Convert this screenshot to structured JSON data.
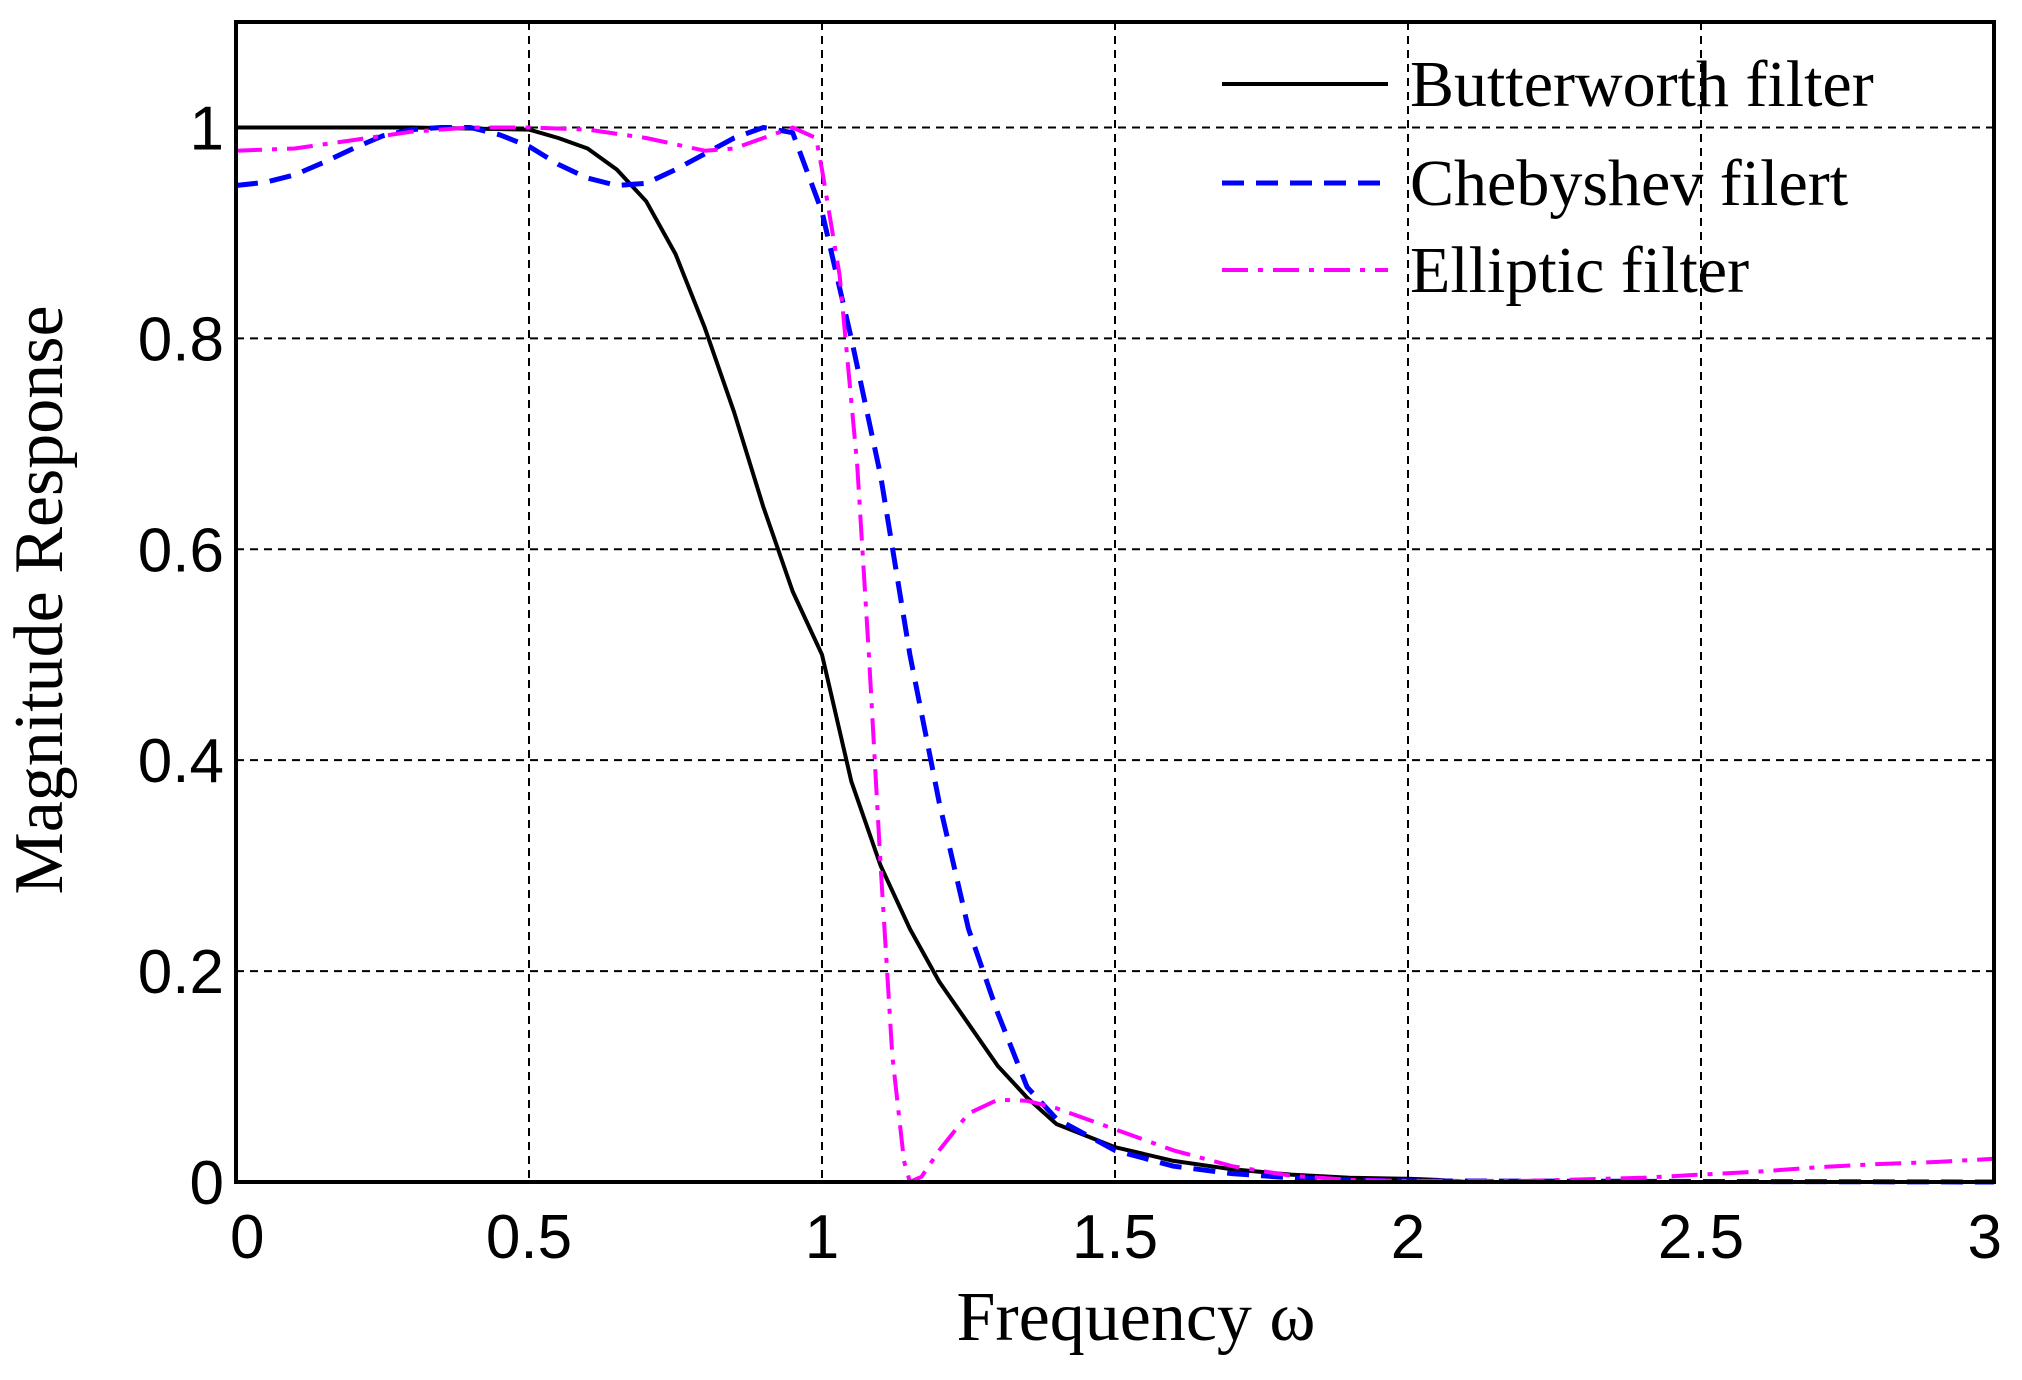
{
  "chart_data": {
    "type": "line",
    "title": "",
    "xlabel": "Frequency ω",
    "ylabel": "Magnitude Response",
    "xlim": [
      0,
      3
    ],
    "ylim": [
      0,
      1.1
    ],
    "xticks": [
      0,
      0.5,
      1,
      1.5,
      2,
      2.5,
      3
    ],
    "xtick_labels": [
      "0",
      "0.5",
      "1",
      "1.5",
      "2",
      "2.5",
      "3"
    ],
    "yticks": [
      0,
      0.2,
      0.4,
      0.6,
      0.8,
      1
    ],
    "ytick_labels": [
      "0",
      "0.2",
      "0.4",
      "0.6",
      "0.8",
      "1"
    ],
    "grid": true,
    "legend_position": "top-right",
    "series": [
      {
        "name": "Butterworth filter",
        "color": "#000000",
        "dash": "solid",
        "points": [
          [
            0,
            1.0
          ],
          [
            0.3,
            1.0
          ],
          [
            0.5,
            0.998
          ],
          [
            0.55,
            0.99
          ],
          [
            0.6,
            0.98
          ],
          [
            0.65,
            0.96
          ],
          [
            0.7,
            0.93
          ],
          [
            0.75,
            0.88
          ],
          [
            0.8,
            0.81
          ],
          [
            0.85,
            0.73
          ],
          [
            0.9,
            0.64
          ],
          [
            0.95,
            0.56
          ],
          [
            1.0,
            0.5
          ],
          [
            1.05,
            0.38
          ],
          [
            1.1,
            0.3
          ],
          [
            1.15,
            0.24
          ],
          [
            1.2,
            0.19
          ],
          [
            1.25,
            0.15
          ],
          [
            1.3,
            0.11
          ],
          [
            1.35,
            0.08
          ],
          [
            1.4,
            0.055
          ],
          [
            1.5,
            0.033
          ],
          [
            1.6,
            0.02
          ],
          [
            1.7,
            0.012
          ],
          [
            1.8,
            0.007
          ],
          [
            1.9,
            0.004
          ],
          [
            2.0,
            0.003
          ],
          [
            2.05,
            0.002
          ],
          [
            2.1,
            0.0
          ],
          [
            3.0,
            0.0
          ]
        ]
      },
      {
        "name": "Chebyshev filert",
        "color": "#0000ff",
        "dash": "dashed",
        "points": [
          [
            0,
            0.945
          ],
          [
            0.05,
            0.948
          ],
          [
            0.1,
            0.955
          ],
          [
            0.15,
            0.967
          ],
          [
            0.2,
            0.98
          ],
          [
            0.25,
            0.992
          ],
          [
            0.3,
            0.998
          ],
          [
            0.35,
            1.0
          ],
          [
            0.4,
            1.0
          ],
          [
            0.45,
            0.993
          ],
          [
            0.5,
            0.982
          ],
          [
            0.55,
            0.965
          ],
          [
            0.6,
            0.952
          ],
          [
            0.65,
            0.945
          ],
          [
            0.7,
            0.947
          ],
          [
            0.75,
            0.96
          ],
          [
            0.8,
            0.975
          ],
          [
            0.85,
            0.99
          ],
          [
            0.9,
            1.0
          ],
          [
            0.95,
            0.995
          ],
          [
            1.0,
            0.92
          ],
          [
            1.05,
            0.8
          ],
          [
            1.1,
            0.67
          ],
          [
            1.15,
            0.5
          ],
          [
            1.2,
            0.36
          ],
          [
            1.25,
            0.24
          ],
          [
            1.3,
            0.16
          ],
          [
            1.35,
            0.09
          ],
          [
            1.4,
            0.06
          ],
          [
            1.5,
            0.03
          ],
          [
            1.6,
            0.015
          ],
          [
            1.7,
            0.008
          ],
          [
            1.8,
            0.004
          ],
          [
            1.9,
            0.002
          ],
          [
            2.0,
            0.001
          ],
          [
            3.0,
            0.0
          ]
        ]
      },
      {
        "name": "Elliptic filter",
        "color": "#ff00ff",
        "dash": "dashdot",
        "points": [
          [
            0,
            0.978
          ],
          [
            0.1,
            0.98
          ],
          [
            0.2,
            0.988
          ],
          [
            0.3,
            0.996
          ],
          [
            0.4,
            1.0
          ],
          [
            0.5,
            1.0
          ],
          [
            0.6,
            0.998
          ],
          [
            0.7,
            0.99
          ],
          [
            0.8,
            0.978
          ],
          [
            0.85,
            0.98
          ],
          [
            0.9,
            0.99
          ],
          [
            0.95,
            1.0
          ],
          [
            0.99,
            0.99
          ],
          [
            1.0,
            0.96
          ],
          [
            1.03,
            0.86
          ],
          [
            1.06,
            0.68
          ],
          [
            1.08,
            0.5
          ],
          [
            1.1,
            0.3
          ],
          [
            1.12,
            0.12
          ],
          [
            1.14,
            0.02
          ],
          [
            1.15,
            0.0
          ],
          [
            1.17,
            0.005
          ],
          [
            1.2,
            0.03
          ],
          [
            1.25,
            0.065
          ],
          [
            1.3,
            0.078
          ],
          [
            1.35,
            0.077
          ],
          [
            1.4,
            0.07
          ],
          [
            1.5,
            0.05
          ],
          [
            1.6,
            0.03
          ],
          [
            1.7,
            0.015
          ],
          [
            1.8,
            0.006
          ],
          [
            1.9,
            0.002
          ],
          [
            2.0,
            0.001
          ],
          [
            2.2,
            0.001
          ],
          [
            2.4,
            0.004
          ],
          [
            2.5,
            0.007
          ],
          [
            2.6,
            0.01
          ],
          [
            2.7,
            0.014
          ],
          [
            2.8,
            0.017
          ],
          [
            2.9,
            0.019
          ],
          [
            3.0,
            0.022
          ]
        ]
      }
    ]
  }
}
